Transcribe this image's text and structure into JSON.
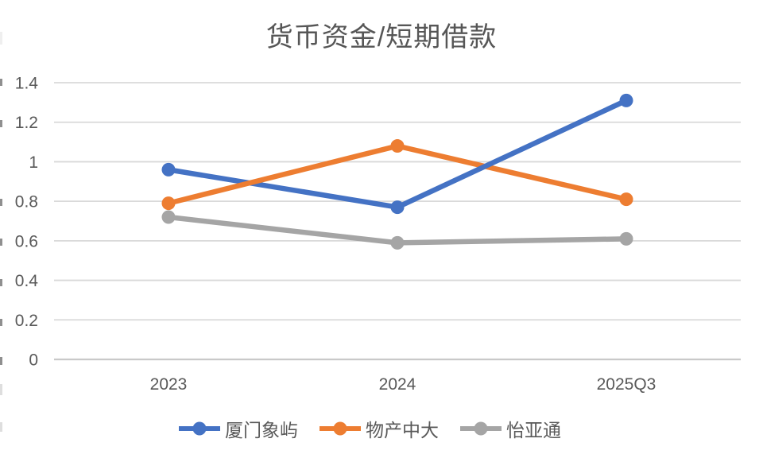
{
  "chart_data": {
    "type": "line",
    "title": "货币资金/短期借款",
    "categories": [
      "2023",
      "2024",
      "2025Q3"
    ],
    "series": [
      {
        "name": "厦门象屿",
        "color": "#4472C4",
        "values": [
          0.96,
          0.77,
          1.31
        ]
      },
      {
        "name": "物产中大",
        "color": "#ED7D31",
        "values": [
          0.79,
          1.08,
          0.81
        ]
      },
      {
        "name": "怡亚通",
        "color": "#A5A5A5",
        "values": [
          0.72,
          0.59,
          0.61
        ]
      }
    ],
    "ylim": [
      0,
      1.4
    ],
    "ytick_step": 0.2,
    "ytick_labels": [
      "0",
      "0.2",
      "0.4",
      "0.6",
      "0.8",
      "1",
      "1.2",
      "1.4"
    ],
    "grid": true,
    "legend_position": "bottom",
    "styles": {
      "grid_color": "#D9D9D9",
      "axis_line_color": "#C9C9C9",
      "tick_text_color": "#595959",
      "title_color": "#565656",
      "background": "#FFFFFF"
    }
  }
}
